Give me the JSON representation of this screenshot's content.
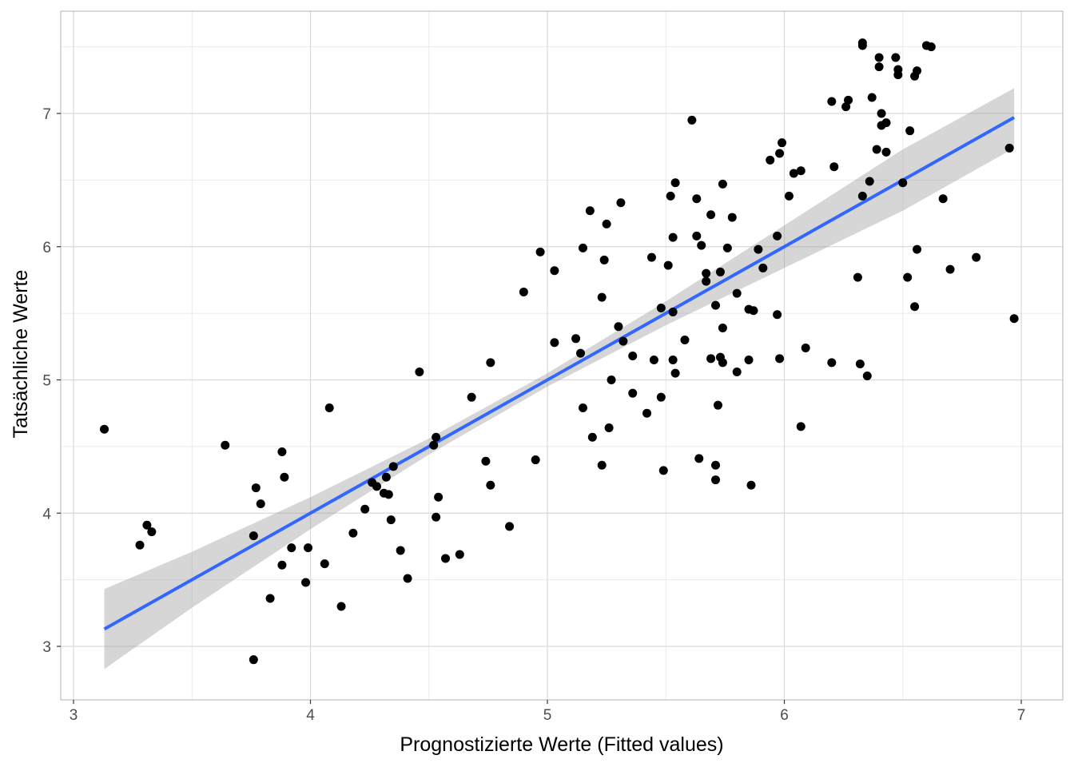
{
  "chart_data": {
    "type": "scatter",
    "title": "",
    "xlabel": "Prognostizierte Werte (Fitted values)",
    "ylabel": "Tatsächliche Werte",
    "xlim": [
      3.0,
      7.0
    ],
    "ylim": [
      2.6,
      7.8
    ],
    "x_ticks": [
      "3",
      "4",
      "5",
      "6",
      "7"
    ],
    "y_ticks": [
      "3",
      "4",
      "5",
      "6",
      "7"
    ],
    "grid": true,
    "colors": {
      "points": "#000000",
      "fit_line": "#3366ff",
      "confidence_band": "#999999",
      "grid": "#ebebeb",
      "panel_border": "#b3b3b3"
    },
    "fit_line": {
      "x": [
        3.13,
        6.97
      ],
      "y": [
        3.13,
        6.97
      ]
    },
    "confidence_band": {
      "x": [
        3.13,
        3.5,
        4.0,
        4.5,
        5.0,
        5.5,
        6.0,
        6.5,
        6.97
      ],
      "lower": [
        2.83,
        3.29,
        3.88,
        4.44,
        4.95,
        5.41,
        5.84,
        6.27,
        6.74
      ],
      "upper": [
        3.43,
        3.71,
        4.12,
        4.56,
        5.05,
        5.59,
        6.16,
        6.73,
        7.19
      ]
    },
    "points": [
      [
        3.13,
        4.63
      ],
      [
        3.28,
        3.76
      ],
      [
        3.31,
        3.91
      ],
      [
        3.33,
        3.86
      ],
      [
        3.64,
        4.51
      ],
      [
        3.76,
        2.9
      ],
      [
        3.76,
        3.83
      ],
      [
        3.77,
        4.19
      ],
      [
        3.79,
        4.07
      ],
      [
        3.83,
        3.36
      ],
      [
        3.88,
        4.46
      ],
      [
        3.88,
        3.61
      ],
      [
        3.89,
        4.27
      ],
      [
        3.92,
        3.74
      ],
      [
        3.98,
        3.48
      ],
      [
        3.99,
        3.74
      ],
      [
        4.06,
        3.62
      ],
      [
        4.08,
        4.79
      ],
      [
        4.13,
        3.3
      ],
      [
        4.18,
        3.85
      ],
      [
        4.23,
        4.03
      ],
      [
        4.26,
        4.23
      ],
      [
        4.28,
        4.2
      ],
      [
        4.31,
        4.15
      ],
      [
        4.32,
        4.27
      ],
      [
        4.33,
        4.14
      ],
      [
        4.34,
        3.95
      ],
      [
        4.35,
        4.35
      ],
      [
        4.38,
        3.72
      ],
      [
        4.41,
        3.51
      ],
      [
        4.46,
        5.06
      ],
      [
        4.52,
        4.51
      ],
      [
        4.53,
        4.57
      ],
      [
        4.53,
        3.97
      ],
      [
        4.54,
        4.12
      ],
      [
        4.57,
        3.66
      ],
      [
        4.63,
        3.69
      ],
      [
        4.68,
        4.87
      ],
      [
        4.74,
        4.39
      ],
      [
        4.76,
        5.13
      ],
      [
        4.76,
        4.21
      ],
      [
        4.84,
        3.9
      ],
      [
        4.9,
        5.66
      ],
      [
        4.95,
        4.4
      ],
      [
        4.97,
        5.96
      ],
      [
        5.03,
        5.28
      ],
      [
        5.03,
        5.82
      ],
      [
        5.12,
        5.31
      ],
      [
        5.14,
        5.2
      ],
      [
        5.15,
        5.99
      ],
      [
        5.15,
        4.79
      ],
      [
        5.18,
        6.27
      ],
      [
        5.19,
        4.57
      ],
      [
        5.23,
        5.62
      ],
      [
        5.23,
        4.36
      ],
      [
        5.24,
        5.9
      ],
      [
        5.25,
        6.17
      ],
      [
        5.26,
        4.64
      ],
      [
        5.27,
        5.0
      ],
      [
        5.3,
        5.4
      ],
      [
        5.31,
        6.33
      ],
      [
        5.32,
        5.29
      ],
      [
        5.36,
        5.18
      ],
      [
        5.36,
        4.9
      ],
      [
        5.42,
        4.75
      ],
      [
        5.44,
        5.92
      ],
      [
        5.45,
        5.15
      ],
      [
        5.48,
        5.54
      ],
      [
        5.48,
        4.87
      ],
      [
        5.49,
        4.32
      ],
      [
        5.51,
        5.86
      ],
      [
        5.52,
        6.38
      ],
      [
        5.53,
        5.51
      ],
      [
        5.53,
        5.15
      ],
      [
        5.53,
        6.07
      ],
      [
        5.54,
        5.05
      ],
      [
        5.54,
        6.48
      ],
      [
        5.58,
        5.3
      ],
      [
        5.61,
        6.95
      ],
      [
        5.63,
        6.36
      ],
      [
        5.63,
        6.08
      ],
      [
        5.64,
        4.41
      ],
      [
        5.65,
        6.01
      ],
      [
        5.67,
        5.8
      ],
      [
        5.67,
        5.74
      ],
      [
        5.69,
        6.24
      ],
      [
        5.69,
        5.16
      ],
      [
        5.71,
        5.56
      ],
      [
        5.71,
        4.36
      ],
      [
        5.71,
        4.25
      ],
      [
        5.72,
        4.81
      ],
      [
        5.73,
        5.17
      ],
      [
        5.73,
        5.81
      ],
      [
        5.74,
        5.13
      ],
      [
        5.74,
        5.39
      ],
      [
        5.74,
        6.47
      ],
      [
        5.76,
        5.99
      ],
      [
        5.78,
        6.22
      ],
      [
        5.8,
        5.06
      ],
      [
        5.8,
        5.65
      ],
      [
        5.85,
        5.15
      ],
      [
        5.85,
        5.53
      ],
      [
        5.86,
        4.21
      ],
      [
        5.87,
        5.52
      ],
      [
        5.89,
        5.98
      ],
      [
        5.91,
        5.84
      ],
      [
        5.94,
        6.65
      ],
      [
        5.97,
        5.49
      ],
      [
        5.97,
        6.08
      ],
      [
        5.98,
        6.7
      ],
      [
        5.98,
        5.16
      ],
      [
        5.99,
        6.78
      ],
      [
        6.02,
        6.38
      ],
      [
        6.04,
        6.55
      ],
      [
        6.07,
        6.57
      ],
      [
        6.07,
        4.65
      ],
      [
        6.09,
        5.24
      ],
      [
        6.2,
        7.09
      ],
      [
        6.2,
        5.13
      ],
      [
        6.21,
        6.6
      ],
      [
        6.26,
        7.05
      ],
      [
        6.27,
        7.1
      ],
      [
        6.31,
        5.77
      ],
      [
        6.32,
        5.12
      ],
      [
        6.33,
        6.38
      ],
      [
        6.33,
        7.53
      ],
      [
        6.33,
        7.51
      ],
      [
        6.35,
        5.03
      ],
      [
        6.36,
        6.49
      ],
      [
        6.37,
        7.12
      ],
      [
        6.39,
        6.73
      ],
      [
        6.4,
        7.35
      ],
      [
        6.4,
        7.42
      ],
      [
        6.41,
        7.0
      ],
      [
        6.41,
        6.91
      ],
      [
        6.43,
        6.93
      ],
      [
        6.43,
        6.71
      ],
      [
        6.47,
        7.42
      ],
      [
        6.48,
        7.33
      ],
      [
        6.48,
        7.29
      ],
      [
        6.5,
        6.48
      ],
      [
        6.52,
        5.77
      ],
      [
        6.53,
        6.87
      ],
      [
        6.55,
        7.28
      ],
      [
        6.55,
        5.55
      ],
      [
        6.56,
        7.32
      ],
      [
        6.56,
        5.98
      ],
      [
        6.6,
        7.51
      ],
      [
        6.62,
        7.5
      ],
      [
        6.67,
        6.36
      ],
      [
        6.7,
        5.83
      ],
      [
        6.81,
        5.92
      ],
      [
        6.95,
        6.74
      ],
      [
        6.97,
        5.46
      ]
    ]
  }
}
